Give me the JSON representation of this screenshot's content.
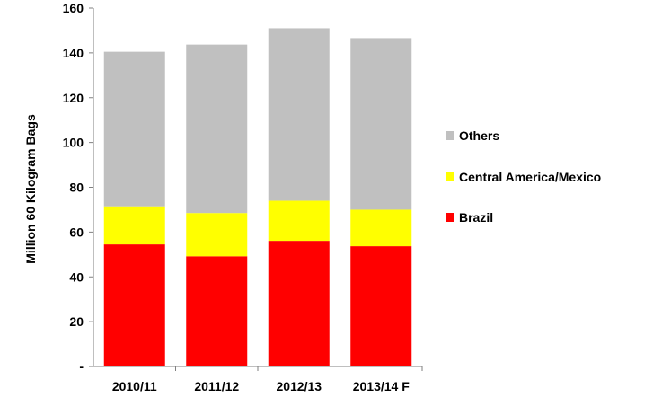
{
  "chart_data": {
    "type": "bar",
    "stacked": true,
    "title": "",
    "xlabel": "",
    "ylabel": "Million 60 Kilogram Bags",
    "ylim": [
      0,
      160
    ],
    "yticks": [
      {
        "value": 0,
        "label": "-"
      },
      {
        "value": 20,
        "label": "20"
      },
      {
        "value": 40,
        "label": "40"
      },
      {
        "value": 60,
        "label": "60"
      },
      {
        "value": 80,
        "label": "80"
      },
      {
        "value": 100,
        "label": "100"
      },
      {
        "value": 120,
        "label": "120"
      },
      {
        "value": 140,
        "label": "140"
      },
      {
        "value": 160,
        "label": "160"
      }
    ],
    "grid": false,
    "legend_position": "right",
    "categories": [
      "2010/11",
      "2011/12",
      "2012/13",
      "2013/14 F"
    ],
    "series": [
      {
        "name": "Brazil",
        "color": "#ff0000",
        "values": [
          54.5,
          49.2,
          56.1,
          53.7
        ]
      },
      {
        "name": "Central America/Mexico",
        "color": "#ffff00",
        "values": [
          17.0,
          19.3,
          17.9,
          16.3
        ]
      },
      {
        "name": "Others",
        "color": "#c0c0c0",
        "values": [
          69.0,
          75.2,
          77.0,
          76.6
        ]
      }
    ],
    "legend_order": [
      "Others",
      "Central America/Mexico",
      "Brazil"
    ]
  }
}
